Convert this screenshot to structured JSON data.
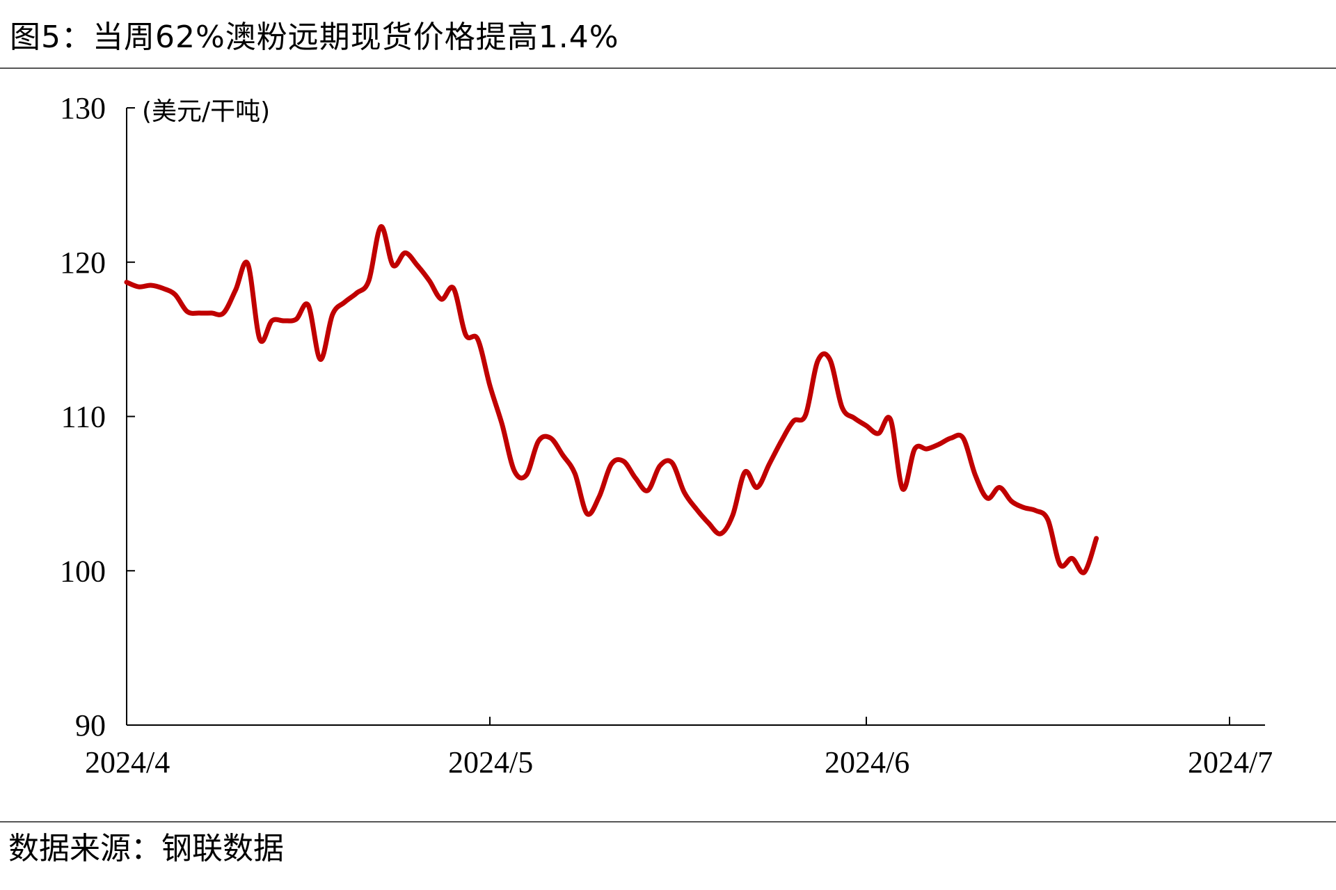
{
  "title": "图5：当周62%澳粉远期现货价格提高1.4%",
  "source": "数据来源：钢联数据",
  "chart_data": {
    "type": "line",
    "title": "图5：当周62%澳粉远期现货价格提高1.4%",
    "ylabel": "(美元/干吨)",
    "xlabel": "",
    "ylim": [
      90,
      130
    ],
    "yticks": [
      "90",
      "100",
      "110",
      "120",
      "130"
    ],
    "xlim": [
      "2024-04-01",
      "2024-07-04"
    ],
    "xticks": [
      {
        "date": "2024-04-01",
        "label": "2024/4"
      },
      {
        "date": "2024-05-01",
        "label": "2024/5"
      },
      {
        "date": "2024-06-01",
        "label": "2024/6"
      },
      {
        "date": "2024-07-01",
        "label": "2024/7"
      }
    ],
    "grid": false,
    "legend": "none",
    "line_color": "#C00000",
    "series": [
      {
        "x": [
          "2024-04-01",
          "2024-04-02",
          "2024-04-03",
          "2024-04-04",
          "2024-04-05",
          "2024-04-06",
          "2024-04-07",
          "2024-04-08",
          "2024-04-09",
          "2024-04-10",
          "2024-04-11",
          "2024-04-12",
          "2024-04-13",
          "2024-04-14",
          "2024-04-15",
          "2024-04-16",
          "2024-04-17",
          "2024-04-18",
          "2024-04-19",
          "2024-04-20",
          "2024-04-21",
          "2024-04-22",
          "2024-04-23",
          "2024-04-24",
          "2024-04-25",
          "2024-04-26",
          "2024-04-27",
          "2024-04-28",
          "2024-04-29",
          "2024-04-30",
          "2024-05-01",
          "2024-05-02",
          "2024-05-03",
          "2024-05-04",
          "2024-05-05",
          "2024-05-06",
          "2024-05-07",
          "2024-05-08",
          "2024-05-09",
          "2024-05-10",
          "2024-05-11",
          "2024-05-12",
          "2024-05-13",
          "2024-05-14",
          "2024-05-15",
          "2024-05-16",
          "2024-05-17",
          "2024-05-18",
          "2024-05-19",
          "2024-05-20",
          "2024-05-21",
          "2024-05-22",
          "2024-05-23",
          "2024-05-24",
          "2024-05-25",
          "2024-05-26",
          "2024-05-27",
          "2024-05-28",
          "2024-05-29",
          "2024-05-30",
          "2024-05-31",
          "2024-06-01",
          "2024-06-02",
          "2024-06-03",
          "2024-06-04",
          "2024-06-05",
          "2024-06-06",
          "2024-06-07",
          "2024-06-08",
          "2024-06-09",
          "2024-06-10",
          "2024-06-11",
          "2024-06-12",
          "2024-06-13",
          "2024-06-14",
          "2024-06-15",
          "2024-06-16",
          "2024-06-17",
          "2024-06-18",
          "2024-06-19",
          "2024-06-20",
          "2024-06-21",
          "2024-06-22",
          "2024-06-23",
          "2024-06-24",
          "2024-06-25",
          "2024-06-26",
          "2024-06-27",
          "2024-06-28",
          "2024-06-29",
          "2024-06-30",
          "2024-07-01",
          "2024-07-02",
          "2024-07-03",
          "2024-07-04"
        ],
        "values": [
          118.7,
          118.4,
          118.5,
          118.3,
          117.9,
          116.8,
          116.7,
          116.7,
          116.7,
          118.2,
          119.9,
          115.0,
          116.2,
          116.2,
          116.3,
          117.2,
          113.7,
          116.6,
          117.4,
          118.0,
          118.8,
          122.3,
          119.8,
          120.6,
          119.8,
          118.8,
          117.6,
          118.3,
          115.3,
          115.0,
          112.0,
          109.5,
          106.5,
          106.2,
          108.4,
          108.6,
          107.5,
          106.3,
          103.7,
          104.8,
          106.9,
          107.1,
          106.0,
          105.2,
          106.8,
          107.0,
          105.1,
          104.0,
          103.1,
          102.4,
          103.6,
          106.4,
          105.4,
          106.9,
          108.4,
          109.7,
          110.1,
          113.6,
          113.7,
          110.6,
          109.9,
          109.4,
          108.9,
          109.8,
          105.3,
          107.9,
          107.9,
          108.2,
          108.6,
          108.6,
          106.2,
          104.7,
          105.4,
          104.5,
          104.1,
          103.9,
          103.3,
          100.4,
          100.8,
          99.9,
          102.1,
          null,
          null,
          null,
          null,
          null,
          null,
          null,
          null,
          null,
          null,
          null,
          null,
          null,
          null
        ]
      }
    ]
  }
}
